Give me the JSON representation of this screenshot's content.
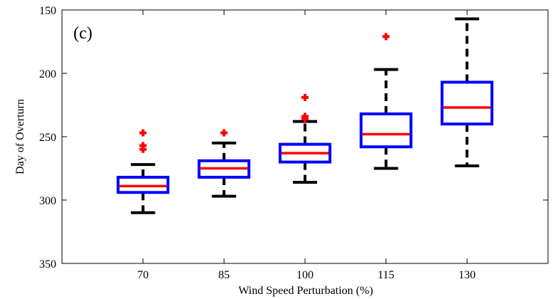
{
  "chart_data": {
    "type": "box",
    "panel_label": "(c)",
    "xlabel": "Wind Speed Perturbation (%)",
    "ylabel": "Day of Overturn",
    "categories": [
      "70",
      "85",
      "100",
      "115",
      "130"
    ],
    "ylim": [
      150,
      350
    ],
    "y_reversed": true,
    "yticks": [
      150,
      200,
      250,
      300,
      350
    ],
    "grid": false,
    "boxes": [
      {
        "category": "70",
        "whisker_low": 272,
        "q1": 282,
        "median": 289,
        "q3": 294,
        "whisker_high": 310,
        "outliers": [
          247,
          257,
          260
        ]
      },
      {
        "category": "85",
        "whisker_low": 255,
        "q1": 269,
        "median": 275,
        "q3": 282,
        "whisker_high": 297,
        "outliers": [
          247
        ]
      },
      {
        "category": "100",
        "whisker_low": 238,
        "q1": 256,
        "median": 263,
        "q3": 270,
        "whisker_high": 286,
        "outliers": [
          219,
          234,
          236
        ]
      },
      {
        "category": "115",
        "whisker_low": 197,
        "q1": 232,
        "median": 248,
        "q3": 258,
        "whisker_high": 275,
        "outliers": [
          171
        ]
      },
      {
        "category": "130",
        "whisker_low": 157,
        "q1": 207,
        "median": 227,
        "q3": 240,
        "whisker_high": 273,
        "outliers": []
      }
    ],
    "colors": {
      "box": "#0000ff",
      "median": "#ff0000",
      "whisker": "#000000",
      "outlier": "#ff0000",
      "axis": "#000000"
    }
  }
}
